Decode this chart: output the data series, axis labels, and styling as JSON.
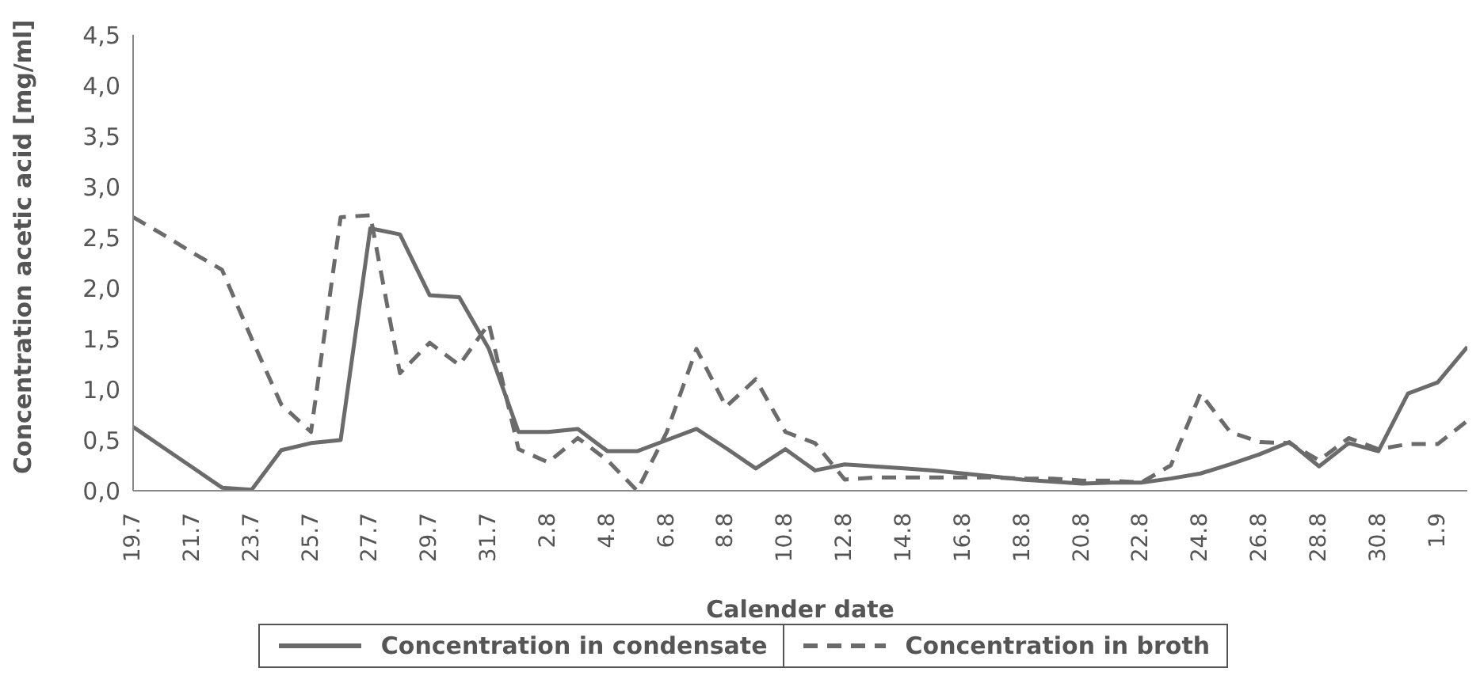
{
  "chart_data": {
    "type": "line",
    "xlabel": "Calender date",
    "ylabel": "Concentration acetic acid [mg/ml]",
    "categories": [
      "19.7",
      null,
      "21.7",
      null,
      "23.7",
      null,
      "25.7",
      null,
      "27.7",
      null,
      "29.7",
      null,
      "31.7",
      null,
      "2.8",
      null,
      "4.8",
      null,
      "6.8",
      null,
      "8.8",
      null,
      "10.8",
      null,
      "12.8",
      null,
      "14.8",
      null,
      "16.8",
      null,
      "18.8",
      null,
      "20.8",
      null,
      "22.8",
      null,
      "24.8",
      null,
      "26.8",
      null,
      "28.8",
      null,
      "30.8",
      null,
      "1.9",
      null
    ],
    "series": [
      {
        "name": "Concentration in condensate",
        "color": "#6b6b6b",
        "line_style": "solid",
        "values": [
          0.63,
          0.43,
          0.23,
          0.03,
          0.01,
          0.4,
          0.47,
          0.5,
          2.59,
          2.53,
          1.93,
          1.91,
          1.4,
          0.58,
          0.58,
          0.61,
          0.39,
          0.39,
          0.5,
          0.61,
          0.42,
          0.22,
          0.41,
          0.2,
          0.26,
          0.24,
          0.22,
          0.2,
          0.17,
          0.14,
          0.11,
          0.09,
          0.07,
          0.08,
          0.08,
          0.12,
          0.17,
          0.26,
          0.36,
          0.48,
          0.24,
          0.47,
          0.39,
          0.96,
          1.07,
          1.42
        ]
      },
      {
        "name": "Concentration in broth",
        "color": "#6b6b6b",
        "line_style": "dashed",
        "values": [
          2.7,
          2.53,
          2.35,
          2.18,
          1.5,
          0.85,
          0.58,
          2.7,
          2.72,
          1.16,
          1.46,
          1.24,
          1.65,
          0.41,
          0.28,
          0.52,
          0.3,
          0.0,
          0.58,
          1.4,
          0.83,
          1.1,
          0.58,
          0.47,
          0.11,
          0.13,
          0.13,
          0.13,
          0.13,
          0.13,
          0.12,
          0.12,
          0.1,
          0.1,
          0.08,
          0.25,
          0.96,
          0.58,
          0.48,
          0.47,
          0.3,
          0.52,
          0.41,
          0.46,
          0.46,
          0.69
        ]
      }
    ],
    "ylim": [
      0,
      4.5
    ],
    "yticks": [
      {
        "value": 0,
        "label": "0,0"
      },
      {
        "value": 0.5,
        "label": "0,5"
      },
      {
        "value": 1,
        "label": "1,0"
      },
      {
        "value": 1.5,
        "label": "1,5"
      },
      {
        "value": 2,
        "label": "2,0"
      },
      {
        "value": 2.5,
        "label": "2,5"
      },
      {
        "value": 3,
        "label": "3,0"
      },
      {
        "value": 3.5,
        "label": "3,5"
      },
      {
        "value": 4,
        "label": "4,0"
      },
      {
        "value": 4.5,
        "label": "4,5"
      }
    ],
    "grid": false,
    "legend": "bottom",
    "marker": "none"
  }
}
